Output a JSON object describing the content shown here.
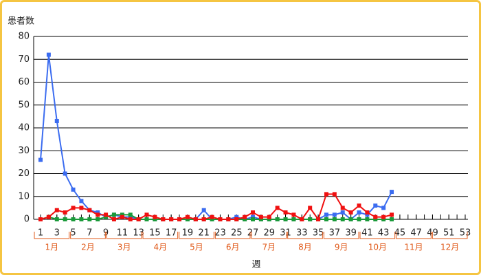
{
  "chart_data": {
    "type": "line",
    "ylabel": "患者数",
    "xlabel": "週",
    "x": [
      1,
      2,
      3,
      4,
      5,
      6,
      7,
      8,
      9,
      10,
      11,
      12,
      13,
      14,
      15,
      16,
      17,
      18,
      19,
      20,
      21,
      22,
      23,
      24,
      25,
      26,
      27,
      28,
      29,
      30,
      31,
      32,
      33,
      34,
      35,
      36,
      37,
      38,
      39,
      40,
      41,
      42,
      43,
      44
    ],
    "series": [
      {
        "color": "#3b6cf0",
        "values": [
          26,
          72,
          43,
          20,
          13,
          8,
          4,
          3,
          1,
          2,
          1,
          1,
          0,
          0,
          0,
          0,
          0,
          0,
          0,
          0,
          4,
          0,
          0,
          0,
          1,
          0,
          1,
          0,
          0,
          0,
          0,
          0,
          0,
          0,
          0,
          2,
          2,
          3,
          0,
          3,
          2,
          6,
          5,
          12
        ]
      },
      {
        "color": "#1a9a3a",
        "values": [
          0,
          1,
          0,
          0,
          0,
          0,
          0,
          0,
          1,
          2,
          2,
          2,
          0,
          0,
          0,
          0,
          0,
          0,
          0,
          0,
          0,
          0,
          0,
          0,
          0,
          0,
          0,
          0,
          0,
          0,
          0,
          0,
          0,
          0,
          0,
          0,
          0,
          0,
          0,
          0,
          0,
          0,
          0,
          0
        ]
      },
      {
        "color": "#f01010",
        "values": [
          0,
          1,
          4,
          3,
          5,
          5,
          4,
          2,
          2,
          0,
          1,
          0,
          0,
          2,
          1,
          0,
          0,
          0,
          1,
          0,
          0,
          1,
          0,
          0,
          0,
          1,
          3,
          1,
          1,
          5,
          3,
          2,
          0,
          5,
          0,
          11,
          11,
          5,
          3,
          6,
          3,
          1,
          1,
          2
        ]
      }
    ],
    "xlim": [
      1,
      53
    ],
    "xticks": [
      1,
      3,
      5,
      7,
      9,
      11,
      13,
      15,
      17,
      19,
      21,
      23,
      25,
      27,
      29,
      31,
      33,
      35,
      37,
      39,
      41,
      43,
      45,
      47,
      49,
      51,
      53
    ],
    "ylim": [
      0,
      80
    ],
    "yticks": [
      0,
      10,
      20,
      30,
      40,
      50,
      60,
      70,
      80
    ],
    "grid": true,
    "months": [
      "1月",
      "2月",
      "3月",
      "4月",
      "5月",
      "6月",
      "7月",
      "8月",
      "9月",
      "10月",
      "11月",
      "12月"
    ]
  }
}
